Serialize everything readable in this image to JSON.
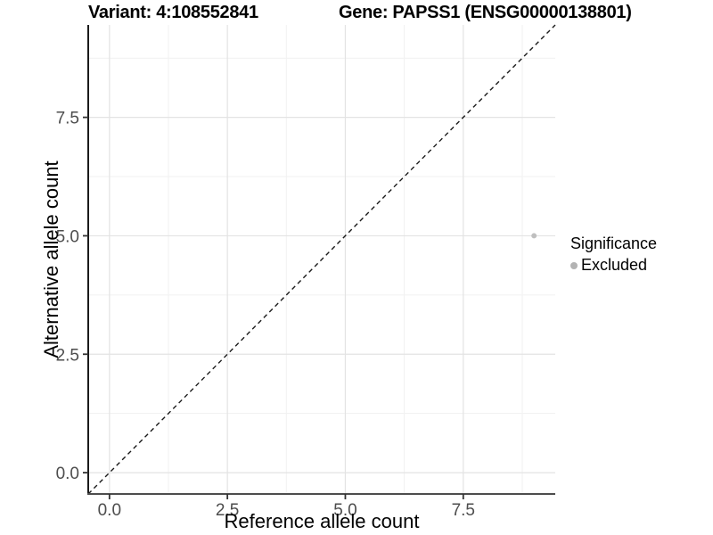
{
  "chart_data": {
    "type": "scatter",
    "titles": {
      "left": "Variant: 4:108552841",
      "right": "Gene: PAPSS1 (ENSG00000138801)"
    },
    "xlabel": "Reference allele count",
    "ylabel": "Alternative allele count",
    "xlim": [
      -0.45,
      9.45
    ],
    "ylim": [
      -0.45,
      9.45
    ],
    "x_major_ticks": [
      0,
      2.5,
      5,
      7.5
    ],
    "x_tick_labels": [
      "0.0",
      "2.5",
      "5.0",
      "7.5"
    ],
    "y_major_ticks": [
      0,
      2.5,
      5,
      7.5
    ],
    "y_tick_labels": [
      "0.0",
      "2.5",
      "5.0",
      "7.5"
    ],
    "minor_ticks": [
      1.25,
      3.75,
      6.25,
      8.75
    ],
    "grid": true,
    "reference_line": {
      "type": "identity",
      "style": "dashed",
      "color": "#1a1a1a"
    },
    "series": [
      {
        "name": "Excluded",
        "color": "#bfbfbf",
        "points": [
          [
            9,
            5
          ]
        ]
      }
    ],
    "legend": {
      "position": "right",
      "title": "Significance",
      "entries": [
        {
          "label": "Excluded",
          "color": "#b3b3b3",
          "marker": "circle"
        }
      ]
    },
    "colors": {
      "grid_major": "#e3e3e3",
      "grid_minor": "#f1f1f1",
      "y_axis_line": "#1a1a1a",
      "x_axis_line": "#4d4d4d",
      "tick_mark": "#333333",
      "tick_label": "#4d4d4d"
    }
  }
}
